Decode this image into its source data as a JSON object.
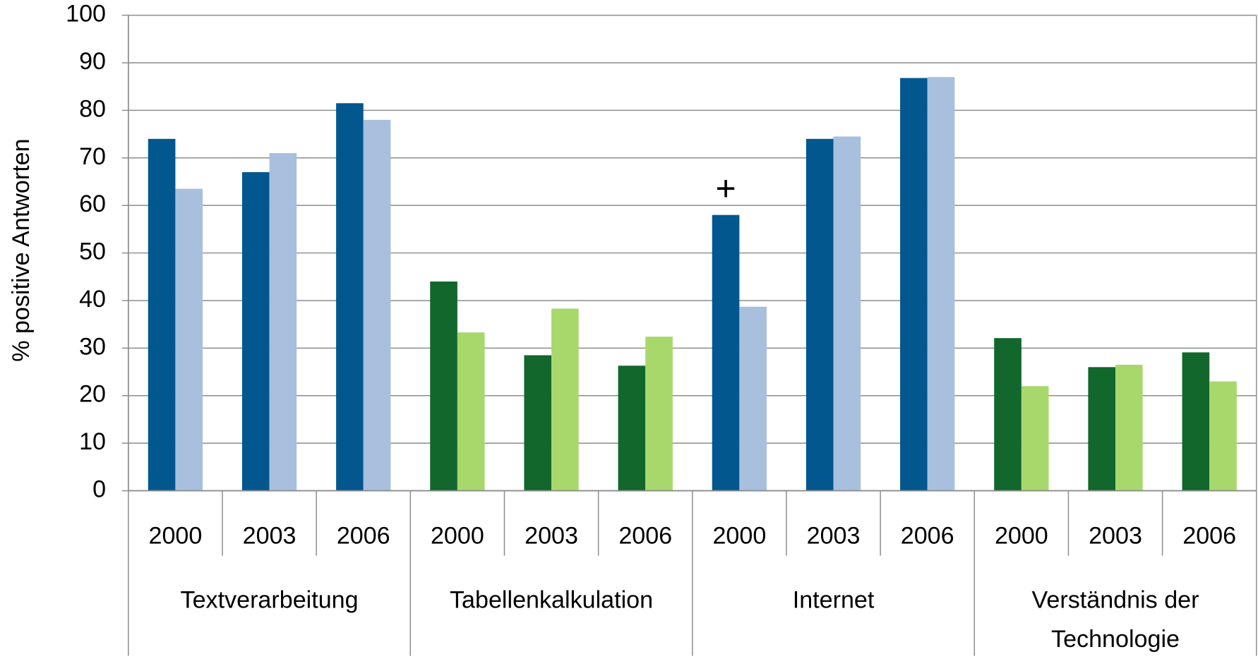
{
  "chart_data": {
    "type": "bar",
    "y_label": "% positive Antworten",
    "ylim": [
      0,
      100
    ],
    "yticks": [
      0,
      10,
      20,
      30,
      40,
      50,
      60,
      70,
      80,
      90,
      100
    ],
    "grid": true,
    "groups": [
      {
        "label": "Textverarbeitung",
        "categories": [
          "2000",
          "2003",
          "2006"
        ],
        "series": [
          {
            "color": "#02578f",
            "values": [
              74,
              67,
              81.5
            ]
          },
          {
            "color": "#a8bfdd",
            "values": [
              63.5,
              71,
              78
            ]
          }
        ]
      },
      {
        "label": "Tabellenkalkulation",
        "categories": [
          "2000",
          "2003",
          "2006"
        ],
        "series": [
          {
            "color": "#12672c",
            "values": [
              44,
              28.5,
              26.3
            ]
          },
          {
            "color": "#a8d86b",
            "values": [
              33.3,
              38.3,
              32.4
            ]
          }
        ]
      },
      {
        "label": "Internet",
        "categories": [
          "2000",
          "2003",
          "2006"
        ],
        "series": [
          {
            "color": "#02578f",
            "values": [
              58,
              74,
              86.8
            ],
            "value_annotations": [
              "+",
              null,
              null
            ]
          },
          {
            "color": "#a8bfdd",
            "values": [
              38.7,
              74.5,
              87
            ]
          }
        ]
      },
      {
        "label": "Verständnis der Technologie",
        "categories": [
          "2000",
          "2003",
          "2006"
        ],
        "series": [
          {
            "color": "#12672c",
            "values": [
              32.1,
              26,
              29.1
            ]
          },
          {
            "color": "#a8d86b",
            "values": [
              22,
              26.5,
              23
            ]
          }
        ]
      }
    ]
  }
}
